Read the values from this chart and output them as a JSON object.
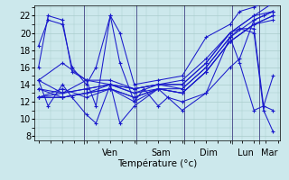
{
  "xlabel": "Température (°c)",
  "background_color": "#cce8ec",
  "grid_color": "#aacccc",
  "line_color": "#1a1acc",
  "marker_color": "#1a1acc",
  "ylim": [
    7.5,
    23.2
  ],
  "yticks": [
    8,
    10,
    12,
    14,
    16,
    18,
    20,
    22
  ],
  "xlim": [
    -0.08,
    5.05
  ],
  "day_boundaries": [
    0.95,
    2.05,
    3.05,
    4.05,
    4.6
  ],
  "day_labels": [
    "Ven",
    "Sam",
    "Dim",
    "Lun",
    "Mar"
  ],
  "series": [
    {
      "x": [
        0.0,
        0.2,
        0.5,
        0.7,
        1.0,
        1.2,
        1.5,
        1.7,
        2.0,
        2.5,
        3.0,
        3.5,
        4.0,
        4.2,
        4.5,
        4.7,
        4.9
      ],
      "y": [
        18.5,
        21.5,
        21.0,
        16.0,
        14.0,
        16.0,
        22.0,
        20.0,
        14.0,
        14.5,
        15.0,
        19.5,
        21.0,
        22.5,
        23.0,
        23.5,
        24.0
      ]
    },
    {
      "x": [
        0.0,
        0.2,
        0.5,
        0.7,
        1.0,
        1.2,
        1.5,
        1.7,
        2.0,
        2.5,
        3.0,
        3.5,
        4.0,
        4.2,
        4.5,
        4.7,
        4.9
      ],
      "y": [
        14.5,
        11.5,
        14.0,
        12.5,
        10.5,
        9.5,
        14.0,
        9.5,
        11.5,
        13.5,
        11.0,
        13.0,
        16.0,
        17.0,
        21.5,
        22.0,
        22.5
      ]
    },
    {
      "x": [
        0.0,
        0.5,
        1.0,
        1.5,
        2.0,
        2.5,
        3.0,
        3.5,
        4.0,
        4.5,
        4.9
      ],
      "y": [
        13.5,
        13.0,
        14.5,
        14.5,
        13.5,
        14.0,
        14.5,
        17.0,
        20.0,
        22.0,
        23.5
      ]
    },
    {
      "x": [
        0.0,
        0.5,
        1.0,
        1.5,
        2.0,
        2.5,
        3.0,
        3.5,
        4.0,
        4.5,
        4.9
      ],
      "y": [
        12.5,
        12.5,
        13.0,
        14.0,
        13.0,
        13.5,
        13.5,
        16.0,
        19.5,
        21.5,
        22.5
      ]
    },
    {
      "x": [
        0.0,
        0.5,
        1.0,
        1.5,
        2.0,
        2.5,
        3.0,
        3.5,
        4.0,
        4.5,
        4.9
      ],
      "y": [
        12.5,
        13.5,
        12.5,
        13.5,
        12.5,
        13.5,
        13.0,
        15.5,
        19.0,
        21.0,
        22.0
      ]
    },
    {
      "x": [
        0.0,
        0.5,
        1.0,
        1.5,
        2.0,
        2.5,
        3.0,
        3.5,
        4.0,
        4.5,
        4.9
      ],
      "y": [
        14.5,
        13.0,
        13.5,
        14.0,
        13.5,
        14.0,
        14.0,
        16.5,
        20.0,
        22.0,
        22.5
      ]
    },
    {
      "x": [
        0.0,
        0.5,
        1.0,
        1.5,
        2.0,
        2.5,
        3.0,
        3.5,
        4.0,
        4.5,
        4.9
      ],
      "y": [
        12.5,
        12.5,
        13.0,
        13.5,
        12.0,
        13.5,
        13.0,
        15.5,
        19.0,
        21.0,
        21.5
      ]
    },
    {
      "x": [
        0.0,
        0.5,
        1.0,
        1.5,
        2.0,
        2.5,
        3.0,
        3.5,
        4.0,
        4.5,
        4.9
      ],
      "y": [
        13.5,
        12.5,
        13.0,
        13.5,
        12.5,
        13.5,
        13.0,
        15.5,
        19.0,
        21.0,
        22.0
      ]
    },
    {
      "x": [
        0.0,
        0.5,
        1.0,
        1.5,
        2.0,
        2.5,
        3.0,
        3.5,
        4.0,
        4.2,
        4.5,
        4.7,
        4.9
      ],
      "y": [
        14.5,
        16.5,
        14.5,
        14.0,
        13.5,
        14.0,
        13.5,
        16.0,
        19.5,
        20.5,
        20.0,
        11.0,
        8.5
      ]
    },
    {
      "x": [
        0.0,
        0.2,
        0.5,
        0.7,
        1.0,
        1.2,
        1.5,
        1.7,
        2.0,
        2.2,
        2.5,
        2.7,
        3.0,
        3.5,
        4.0,
        4.2,
        4.5,
        4.7,
        4.9
      ],
      "y": [
        16.0,
        22.0,
        21.5,
        15.5,
        14.5,
        11.5,
        22.0,
        16.5,
        12.0,
        13.5,
        11.5,
        12.5,
        12.0,
        13.0,
        19.5,
        16.5,
        11.0,
        11.5,
        15.0
      ]
    },
    {
      "x": [
        0.0,
        0.5,
        1.0,
        1.5,
        2.0,
        2.5,
        3.0,
        3.5,
        4.0,
        4.2,
        4.5,
        4.7,
        4.9
      ],
      "y": [
        12.5,
        13.0,
        13.5,
        14.0,
        13.0,
        14.0,
        14.0,
        16.5,
        20.0,
        20.5,
        20.5,
        11.5,
        11.0
      ]
    }
  ]
}
